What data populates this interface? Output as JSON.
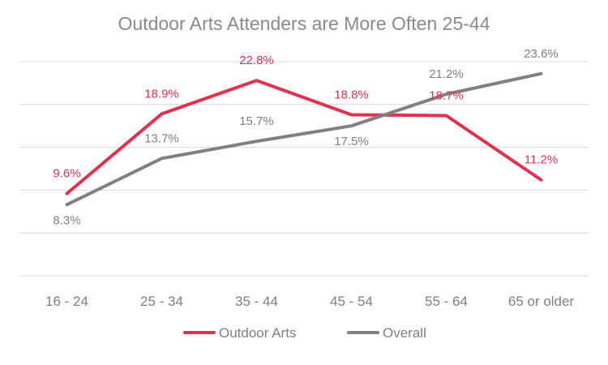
{
  "chart_data": {
    "type": "line",
    "title": "Outdoor Arts Attenders are More Often 25-44",
    "xlabel": "",
    "ylabel": "",
    "categories": [
      "16 - 24",
      "25 - 34",
      "35 - 44",
      "45 - 54",
      "55 - 64",
      "65 or older"
    ],
    "ylim": [
      0,
      25
    ],
    "y_gridline_step": 5,
    "y_tick_labels_shown": false,
    "grid": true,
    "legend_position": "bottom",
    "series": [
      {
        "name": "Outdoor Arts",
        "color": "#e0324f",
        "values": [
          9.6,
          18.9,
          22.8,
          18.8,
          18.7,
          11.2
        ],
        "labels": [
          "9.6%",
          "18.9%",
          "22.8%",
          "18.8%",
          "18.7%",
          "11.2%"
        ]
      },
      {
        "name": "Overall",
        "color": "#808080",
        "values": [
          8.3,
          13.7,
          15.7,
          17.5,
          21.2,
          23.6
        ],
        "labels": [
          "8.3%",
          "13.7%",
          "15.7%",
          "17.5%",
          "21.2%",
          "23.6%"
        ]
      }
    ]
  }
}
